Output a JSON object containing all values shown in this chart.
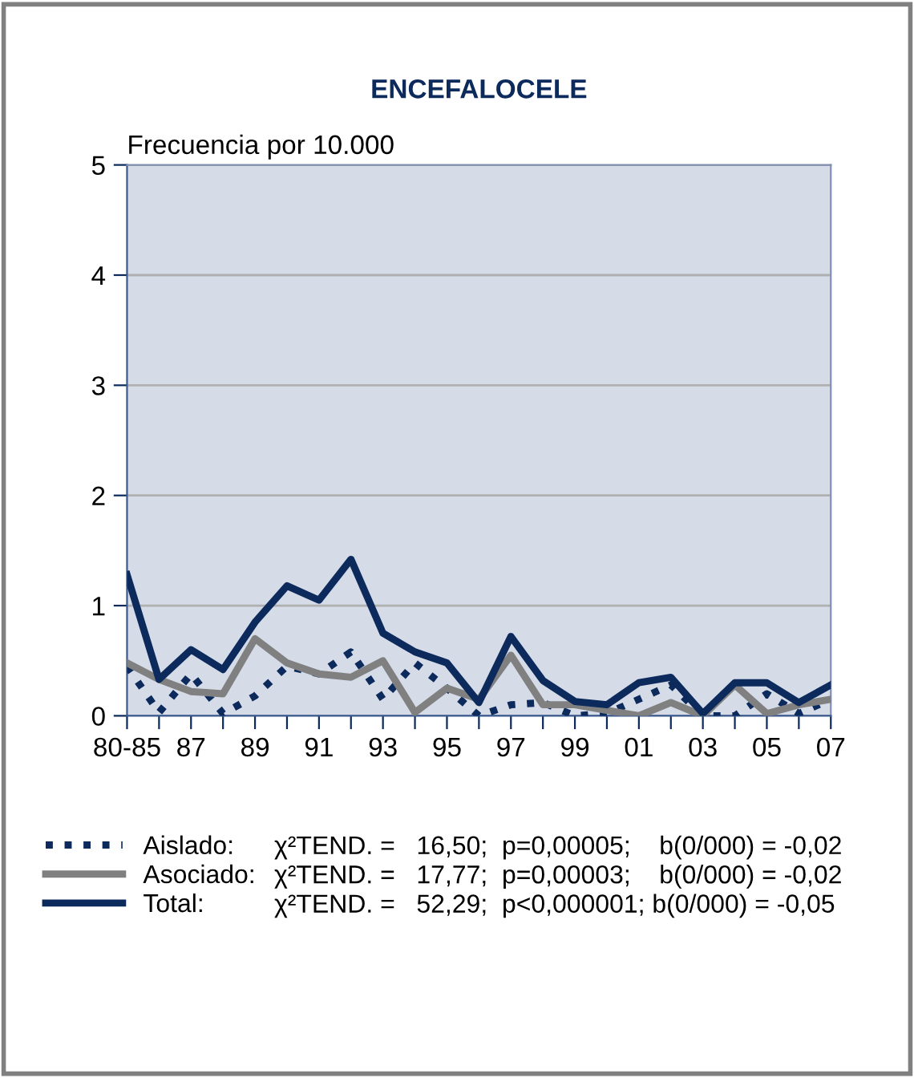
{
  "chart_data": {
    "type": "line",
    "title": "ENCEFALOCELE",
    "ylabel": "Frecuencia por 10.000",
    "categories": [
      "80-85",
      null,
      "87",
      null,
      "89",
      null,
      "91",
      null,
      "93",
      null,
      "95",
      null,
      "97",
      null,
      "99",
      null,
      "01",
      null,
      "03",
      null,
      "05",
      null,
      "07"
    ],
    "ylim": [
      0,
      5
    ],
    "yticks": [
      0,
      1,
      2,
      3,
      4,
      5
    ],
    "grid": "y",
    "legend": "bottom",
    "series": [
      {
        "name": "Aislado:",
        "color": "#0d2a5c",
        "line_style": "dotted",
        "values": [
          0.45,
          0.03,
          0.38,
          0.02,
          0.18,
          0.45,
          0.38,
          0.58,
          0.15,
          0.48,
          0.25,
          0.0,
          0.1,
          0.12,
          0.0,
          0.02,
          0.15,
          0.28,
          0.0,
          0.0,
          0.2,
          0.02,
          0.15
        ]
      },
      {
        "name": "Asociado:",
        "color": "#808080",
        "line_style": "solid",
        "values": [
          0.48,
          0.33,
          0.22,
          0.2,
          0.7,
          0.48,
          0.38,
          0.35,
          0.5,
          0.03,
          0.25,
          0.15,
          0.55,
          0.1,
          0.1,
          0.05,
          0.0,
          0.12,
          0.0,
          0.28,
          0.02,
          0.1,
          0.15
        ]
      },
      {
        "name": "Total:",
        "color": "#0d2a5c",
        "line_style": "solid",
        "values": [
          1.28,
          0.33,
          0.6,
          0.42,
          0.85,
          1.18,
          1.05,
          1.42,
          0.75,
          0.58,
          0.48,
          0.12,
          0.72,
          0.32,
          0.13,
          0.1,
          0.3,
          0.35,
          0.02,
          0.3,
          0.3,
          0.12,
          0.28
        ]
      }
    ],
    "annotations": [
      "χ²TEND. =   16,50;  p=0,00005;    b(0/000) = -0,02",
      "χ²TEND. =   17,77;  p=0,00003;    b(0/000) = -0,02",
      "χ²TEND. =   52,29;  p<0,000001; b(0/000) = -0,05"
    ]
  }
}
